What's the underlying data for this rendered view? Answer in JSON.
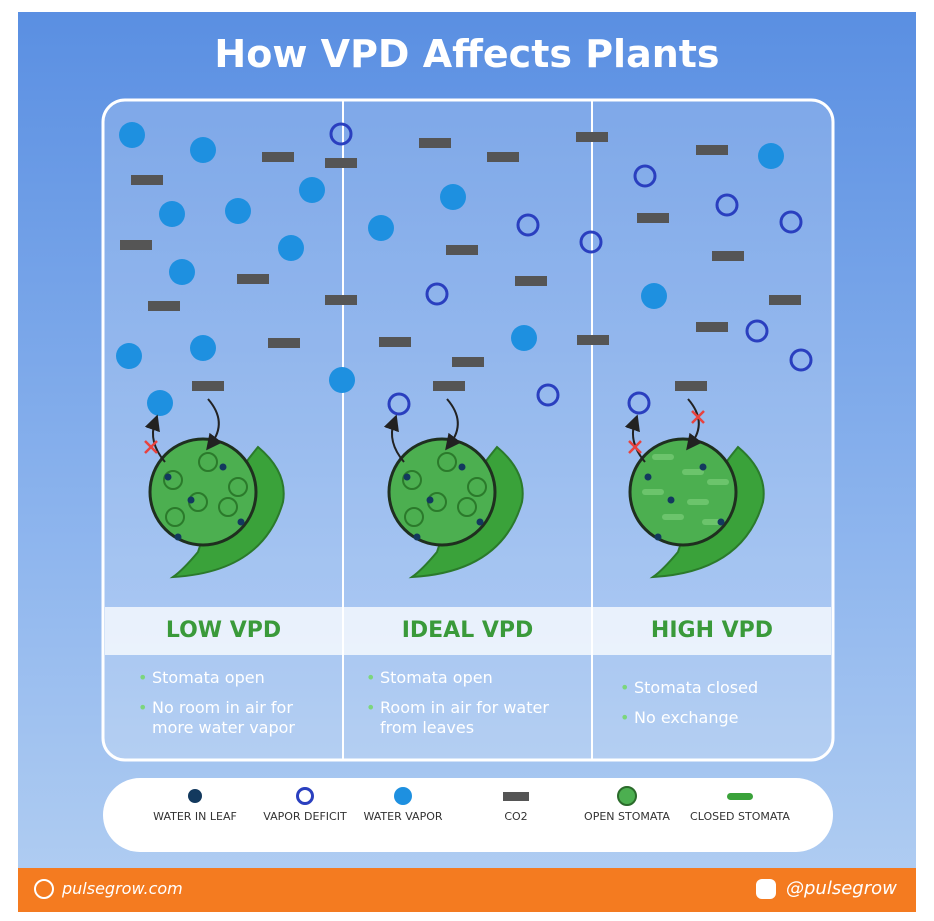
{
  "title": "How VPD Affects Plants",
  "panels": [
    {
      "title": "LOW VPD",
      "bullets": [
        "Stomata open",
        "No room in air for more water vapor"
      ]
    },
    {
      "title": "IDEAL VPD",
      "bullets": [
        "Stomata open",
        "Room in air for water from leaves"
      ]
    },
    {
      "title": "HIGH VPD",
      "bullets": [
        "Stomata closed",
        "No exchange"
      ]
    }
  ],
  "legend": [
    "WATER IN LEAF",
    "VAPOR DEFICIT",
    "WATER VAPOR",
    "CO2",
    "OPEN STOMATA",
    "CLOSED STOMATA"
  ],
  "footer": {
    "website": "pulsegrow.com",
    "social": "@pulsegrow"
  }
}
